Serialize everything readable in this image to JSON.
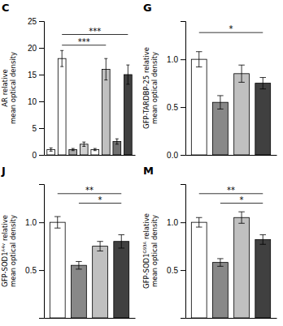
{
  "chart_data": [
    {
      "type": "bar",
      "title": "C",
      "ylabel": "AR relative\nmean optical density",
      "categories": [
        null,
        null,
        null,
        null,
        null,
        null,
        null,
        null
      ],
      "values": [
        1.0,
        18.0,
        1.0,
        2.0,
        1.0,
        16.0,
        2.5,
        15.0
      ],
      "errors": [
        0.3,
        1.5,
        0.2,
        0.4,
        0.2,
        2.0,
        0.5,
        1.8
      ],
      "colors": [
        "#ffffff",
        "#ffffff",
        "#aaaaaa",
        "#d0d0d0",
        "#ffffff",
        "#c0c0c0",
        "#707070",
        "#404040"
      ],
      "ylim": [
        0,
        25
      ],
      "yticks": [
        0,
        5,
        10,
        15,
        20,
        25
      ],
      "tick_labels": "y",
      "annotations": [
        {
          "text": "***",
          "from": 1,
          "to": 7,
          "y": 22.5
        },
        {
          "text": "***",
          "from": 1,
          "to": 5,
          "y": 20.5
        }
      ]
    },
    {
      "type": "bar",
      "title": "G",
      "ylabel": "GFP-TARDBP-25 relative\nmean optical density",
      "categories": [
        null,
        null,
        null,
        null
      ],
      "values": [
        1.0,
        0.55,
        0.85,
        0.75
      ],
      "errors": [
        0.08,
        0.07,
        0.09,
        0.06
      ],
      "colors": [
        "#ffffff",
        "#888888",
        "#c0c0c0",
        "#404040"
      ],
      "ylim": [
        0,
        1.4
      ],
      "yticks": [
        {
          "value": 0.0,
          "label": "0.0"
        },
        0.5,
        {
          "value": 1.0,
          "label": "1.0"
        }
      ],
      "tick_labels": "y",
      "annotations": [
        {
          "text": "*",
          "from": 0,
          "to": 3,
          "y": 1.28
        }
      ]
    },
    {
      "type": "bar",
      "title": "J",
      "ylabel": "GFP-SOD1ᴬ⁴ᵛ relative\nmean optical density",
      "categories": [
        null,
        null,
        null,
        null
      ],
      "values": [
        1.0,
        0.55,
        0.75,
        0.8
      ],
      "errors": [
        0.06,
        0.04,
        0.05,
        0.07
      ],
      "colors": [
        "#ffffff",
        "#888888",
        "#c0c0c0",
        "#404040"
      ],
      "ylim": [
        0,
        1.4
      ],
      "yticks": [
        0.5,
        {
          "value": 1.0,
          "label": "1.0"
        }
      ],
      "tick_labels": "y",
      "annotations": [
        {
          "text": "**",
          "from": 0,
          "to": 3,
          "y": 1.3
        },
        {
          "text": "*",
          "from": 1,
          "to": 3,
          "y": 1.2
        }
      ]
    },
    {
      "type": "bar",
      "title": "M",
      "ylabel": "GFP-SOD1ᴳ⁹³ᴬ relative\nmean optical density",
      "categories": [
        null,
        null,
        null,
        null
      ],
      "values": [
        1.0,
        0.58,
        1.05,
        0.82
      ],
      "errors": [
        0.05,
        0.04,
        0.06,
        0.05
      ],
      "colors": [
        "#ffffff",
        "#888888",
        "#c0c0c0",
        "#404040"
      ],
      "ylim": [
        0,
        1.4
      ],
      "yticks": [
        0.5,
        {
          "value": 1.0,
          "label": "1.0"
        }
      ],
      "tick_labels": "y",
      "annotations": [
        {
          "text": "**",
          "from": 0,
          "to": 3,
          "y": 1.3
        },
        {
          "text": "*",
          "from": 1,
          "to": 3,
          "y": 1.2
        }
      ]
    }
  ]
}
